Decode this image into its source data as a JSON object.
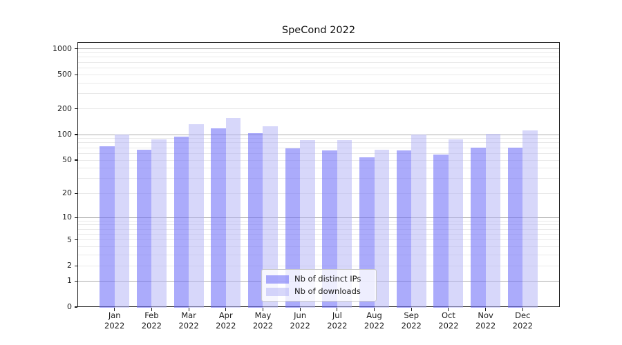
{
  "chart_data": {
    "type": "bar",
    "title": "SpeCond 2022",
    "x_categories": [
      "Jan 2022",
      "Feb 2022",
      "Mar 2022",
      "Apr 2022",
      "May 2022",
      "Jun 2022",
      "Jul 2022",
      "Aug 2022",
      "Sep 2022",
      "Oct 2022",
      "Nov 2022",
      "Dec 2022"
    ],
    "x_tick_months": [
      "Jan",
      "Feb",
      "Mar",
      "Apr",
      "May",
      "Jun",
      "Jul",
      "Aug",
      "Sep",
      "Oct",
      "Nov",
      "Dec"
    ],
    "x_tick_year": "2022",
    "series": [
      {
        "name": "Nb of distinct IPs",
        "color": "rgba(110,110,248,0.58)",
        "values": [
          73,
          66,
          95,
          118,
          103,
          69,
          65,
          54,
          65,
          58,
          70,
          70
        ]
      },
      {
        "name": "Nb of downloads",
        "color": "rgba(178,178,246,0.52)",
        "values": [
          100,
          88,
          132,
          156,
          126,
          86,
          86,
          66,
          100,
          88,
          102,
          111
        ]
      }
    ],
    "yscale": "log1p",
    "yticks": [
      0,
      1,
      2,
      5,
      10,
      20,
      50,
      100,
      200,
      500,
      1000
    ],
    "ylim": [
      0,
      1200
    ],
    "grid": true,
    "legend_position": "lower center",
    "colors": {
      "major_grid": "#ababab",
      "minor_grid": "#e9e9e9",
      "spine": "#1a1a1a",
      "background": "#ffffff"
    }
  }
}
